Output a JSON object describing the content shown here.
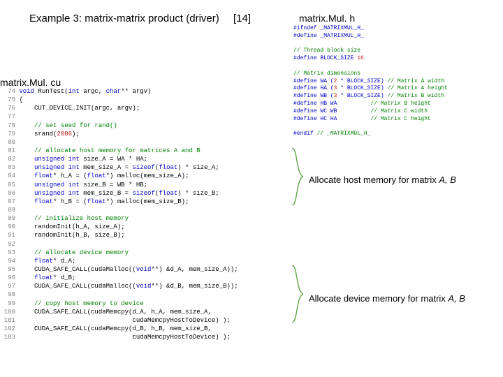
{
  "title": "Example 3: matrix-matrix product (driver)",
  "reference": "[14]",
  "header_file_label": "matrix.Mul. h",
  "source_file_label": "matrix.Mul. cu",
  "annotation1_prefix": "Allocate host memory for matrix ",
  "annotation1_italics": "A, B",
  "annotation2_prefix": "Allocate device memory for matrix ",
  "annotation2_italics": "A, B",
  "bracket_color": "#6aa84f",
  "header_code": {
    "lines": [
      {
        "t": "#ifndef _MATRIXMUL_H_",
        "c": "blue"
      },
      {
        "t": "#define _MATRIXMUL_H_",
        "c": "blue"
      },
      {
        "t": "",
        "c": "black"
      },
      {
        "t": "// Thread block size",
        "c": "green"
      },
      {
        "segments": [
          {
            "t": "#define BLOCK_SIZE ",
            "c": "blue"
          },
          {
            "t": "16",
            "c": "red"
          }
        ]
      },
      {
        "t": "",
        "c": "black"
      },
      {
        "t": "// Matrix dimensions",
        "c": "green"
      },
      {
        "segments": [
          {
            "t": "#define WA (",
            "c": "blue"
          },
          {
            "t": "2",
            "c": "red"
          },
          {
            "t": " * BLOCK_SIZE) ",
            "c": "blue"
          },
          {
            "t": "// Matrix A width",
            "c": "green"
          }
        ]
      },
      {
        "segments": [
          {
            "t": "#define HA (",
            "c": "blue"
          },
          {
            "t": "3",
            "c": "red"
          },
          {
            "t": " * BLOCK_SIZE) ",
            "c": "blue"
          },
          {
            "t": "// Matrix A height",
            "c": "green"
          }
        ]
      },
      {
        "segments": [
          {
            "t": "#define WB (",
            "c": "blue"
          },
          {
            "t": "3",
            "c": "red"
          },
          {
            "t": " * BLOCK_SIZE) ",
            "c": "blue"
          },
          {
            "t": "// Matrix B width",
            "c": "green"
          }
        ]
      },
      {
        "segments": [
          {
            "t": "#define HB WA          ",
            "c": "blue"
          },
          {
            "t": "// Matrix B height",
            "c": "green"
          }
        ]
      },
      {
        "segments": [
          {
            "t": "#define WC WB          ",
            "c": "blue"
          },
          {
            "t": "// Matrix C width",
            "c": "green"
          }
        ]
      },
      {
        "segments": [
          {
            "t": "#define HC HA          ",
            "c": "blue"
          },
          {
            "t": "// Matrix C height",
            "c": "green"
          }
        ]
      },
      {
        "t": "",
        "c": "black"
      },
      {
        "segments": [
          {
            "t": "#endif ",
            "c": "blue"
          },
          {
            "t": "// _MATRIXMUL_H_",
            "c": "green"
          }
        ]
      }
    ]
  },
  "source_code": {
    "lines": [
      {
        "n": "74",
        "segments": [
          {
            "t": "void",
            "c": "blue"
          },
          {
            "t": " RunTest(",
            "c": "black"
          },
          {
            "t": "int",
            "c": "blue"
          },
          {
            "t": " argc, ",
            "c": "black"
          },
          {
            "t": "char",
            "c": "blue"
          },
          {
            "t": "** argv)",
            "c": "black"
          }
        ]
      },
      {
        "n": "75",
        "segments": [
          {
            "t": "{",
            "c": "black"
          }
        ]
      },
      {
        "n": "76",
        "segments": [
          {
            "t": "    CUT_DEVICE_INIT(argc, argv);",
            "c": "black"
          }
        ]
      },
      {
        "n": "77",
        "segments": [
          {
            "t": "",
            "c": "black"
          }
        ]
      },
      {
        "n": "78",
        "segments": [
          {
            "t": "    ",
            "c": "black"
          },
          {
            "t": "// set seed for rand()",
            "c": "green"
          }
        ]
      },
      {
        "n": "79",
        "segments": [
          {
            "t": "    srand(",
            "c": "black"
          },
          {
            "t": "2006",
            "c": "red"
          },
          {
            "t": ");",
            "c": "black"
          }
        ]
      },
      {
        "n": "80",
        "segments": [
          {
            "t": "",
            "c": "black"
          }
        ]
      },
      {
        "n": "81",
        "segments": [
          {
            "t": "    ",
            "c": "black"
          },
          {
            "t": "// allocate host memory for matrices A and B",
            "c": "green"
          }
        ]
      },
      {
        "n": "82",
        "segments": [
          {
            "t": "    ",
            "c": "black"
          },
          {
            "t": "unsigned int",
            "c": "blue"
          },
          {
            "t": " size_A = WA * HA;",
            "c": "black"
          }
        ]
      },
      {
        "n": "83",
        "segments": [
          {
            "t": "    ",
            "c": "black"
          },
          {
            "t": "unsigned int",
            "c": "blue"
          },
          {
            "t": " mem_size_A = ",
            "c": "black"
          },
          {
            "t": "sizeof",
            "c": "blue"
          },
          {
            "t": "(",
            "c": "black"
          },
          {
            "t": "float",
            "c": "blue"
          },
          {
            "t": ") * size_A;",
            "c": "black"
          }
        ]
      },
      {
        "n": "84",
        "segments": [
          {
            "t": "    ",
            "c": "black"
          },
          {
            "t": "float",
            "c": "blue"
          },
          {
            "t": "* h_A = (",
            "c": "black"
          },
          {
            "t": "float",
            "c": "blue"
          },
          {
            "t": "*) malloc(mem_size_A);",
            "c": "black"
          }
        ]
      },
      {
        "n": "85",
        "segments": [
          {
            "t": "    ",
            "c": "black"
          },
          {
            "t": "unsigned int",
            "c": "blue"
          },
          {
            "t": " size_B = WB * HB;",
            "c": "black"
          }
        ]
      },
      {
        "n": "86",
        "segments": [
          {
            "t": "    ",
            "c": "black"
          },
          {
            "t": "unsigned int",
            "c": "blue"
          },
          {
            "t": " mem_size_B = ",
            "c": "black"
          },
          {
            "t": "sizeof",
            "c": "blue"
          },
          {
            "t": "(",
            "c": "black"
          },
          {
            "t": "float",
            "c": "blue"
          },
          {
            "t": ") * size_B;",
            "c": "black"
          }
        ]
      },
      {
        "n": "87",
        "segments": [
          {
            "t": "    ",
            "c": "black"
          },
          {
            "t": "float",
            "c": "blue"
          },
          {
            "t": "* h_B = (",
            "c": "black"
          },
          {
            "t": "float",
            "c": "blue"
          },
          {
            "t": "*) malloc(mem_size_B);",
            "c": "black"
          }
        ]
      },
      {
        "n": "88",
        "segments": [
          {
            "t": "",
            "c": "black"
          }
        ]
      },
      {
        "n": "89",
        "segments": [
          {
            "t": "    ",
            "c": "black"
          },
          {
            "t": "// initialize host memory",
            "c": "green"
          }
        ]
      },
      {
        "n": "90",
        "segments": [
          {
            "t": "    randomInit(h_A, size_A);",
            "c": "black"
          }
        ]
      },
      {
        "n": "91",
        "segments": [
          {
            "t": "    randomInit(h_B, size_B);",
            "c": "black"
          }
        ]
      },
      {
        "n": "92",
        "segments": [
          {
            "t": "",
            "c": "black"
          }
        ]
      },
      {
        "n": "93",
        "segments": [
          {
            "t": "    ",
            "c": "black"
          },
          {
            "t": "// allocate device memory",
            "c": "green"
          }
        ]
      },
      {
        "n": "94",
        "segments": [
          {
            "t": "    ",
            "c": "black"
          },
          {
            "t": "float",
            "c": "blue"
          },
          {
            "t": "* d_A;",
            "c": "black"
          }
        ]
      },
      {
        "n": "95",
        "segments": [
          {
            "t": "    CUDA_SAFE_CALL(cudaMalloc((",
            "c": "black"
          },
          {
            "t": "void",
            "c": "blue"
          },
          {
            "t": "**) &d_A, mem_size_A));",
            "c": "black"
          }
        ]
      },
      {
        "n": "96",
        "segments": [
          {
            "t": "    ",
            "c": "black"
          },
          {
            "t": "float",
            "c": "blue"
          },
          {
            "t": "* d_B;",
            "c": "black"
          }
        ]
      },
      {
        "n": "97",
        "segments": [
          {
            "t": "    CUDA_SAFE_CALL(cudaMalloc((",
            "c": "black"
          },
          {
            "t": "void",
            "c": "blue"
          },
          {
            "t": "**) &d_B, mem_size_B));",
            "c": "black"
          }
        ]
      },
      {
        "n": "98",
        "segments": [
          {
            "t": "",
            "c": "black"
          }
        ]
      },
      {
        "n": "99",
        "segments": [
          {
            "t": "    ",
            "c": "black"
          },
          {
            "t": "// copy host memory to device",
            "c": "green"
          }
        ]
      },
      {
        "n": "100",
        "segments": [
          {
            "t": "    CUDA_SAFE_CALL(cudaMemcpy(d_A, h_A, mem_size_A,",
            "c": "black"
          }
        ]
      },
      {
        "n": "101",
        "segments": [
          {
            "t": "                              cudaMemcpyHostToDevice) );",
            "c": "black"
          }
        ]
      },
      {
        "n": "102",
        "segments": [
          {
            "t": "    CUDA_SAFE_CALL(cudaMemcpy(d_B, h_B, mem_size_B,",
            "c": "black"
          }
        ]
      },
      {
        "n": "103",
        "segments": [
          {
            "t": "                              cudaMemcpyHostToDevice) );",
            "c": "black"
          }
        ]
      }
    ]
  }
}
